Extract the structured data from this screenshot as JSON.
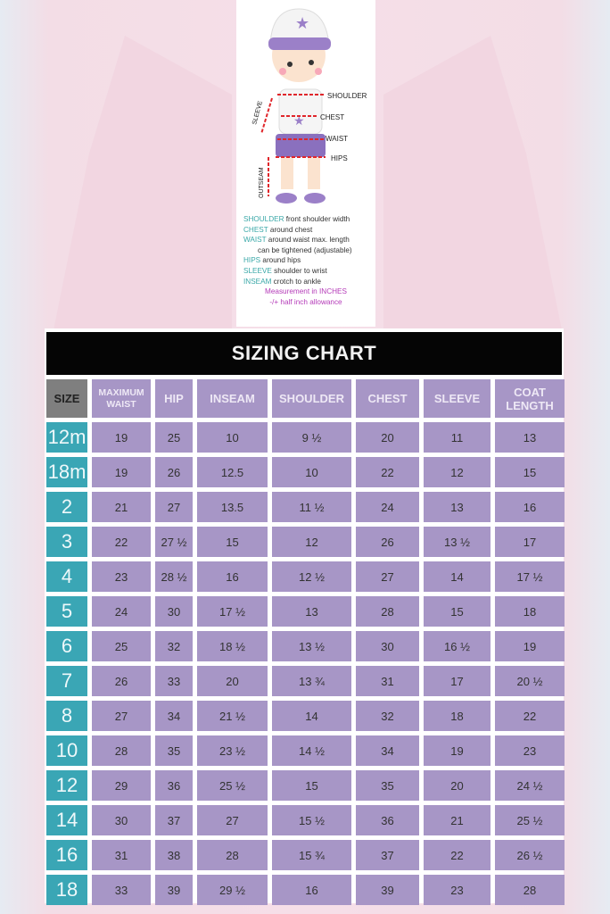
{
  "figure": {
    "labels": {
      "shoulder": "SHOULDER",
      "chest": "CHEST",
      "waist": "WAIST",
      "hips": "HIPS",
      "sleeve": "SLEEVE",
      "outseam": "OUTSEAM"
    },
    "legend": [
      {
        "key": "SHOULDER",
        "text": " front shoulder width"
      },
      {
        "key": "CHEST",
        "text": " around chest"
      },
      {
        "key": "WAIST",
        "text": " around waist max. length"
      },
      {
        "key": "",
        "text": "can be tightened (adjustable)"
      },
      {
        "key": "HIPS",
        "text": " around hips"
      },
      {
        "key": "SLEEVE",
        "text": " shoulder to wrist"
      },
      {
        "key": "INSEAM",
        "text": " crotch to ankle"
      }
    ],
    "notes": [
      "Measurement in INCHES",
      "-/+ half inch allowance"
    ]
  },
  "chart_data": {
    "type": "table",
    "title": "SIZING CHART",
    "columns": [
      "SIZE",
      "MAXIMUM WAIST",
      "HIP",
      "INSEAM",
      "SHOULDER",
      "CHEST",
      "SLEEVE",
      "COAT LENGTH"
    ],
    "rows": [
      [
        "12m",
        "19",
        "25",
        "10",
        "9 ½",
        "20",
        "11",
        "13"
      ],
      [
        "18m",
        "19",
        "26",
        "12.5",
        "10",
        "22",
        "12",
        "15"
      ],
      [
        "2",
        "21",
        "27",
        "13.5",
        "11 ½",
        "24",
        "13",
        "16"
      ],
      [
        "3",
        "22",
        "27 ½",
        "15",
        "12",
        "26",
        "13 ½",
        "17"
      ],
      [
        "4",
        "23",
        "28 ½",
        "16",
        "12 ½",
        "27",
        "14",
        "17 ½"
      ],
      [
        "5",
        "24",
        "30",
        "17 ½",
        "13",
        "28",
        "15",
        "18"
      ],
      [
        "6",
        "25",
        "32",
        "18 ½",
        "13 ½",
        "30",
        "16 ½",
        "19"
      ],
      [
        "7",
        "26",
        "33",
        "20",
        "13 ¾",
        "31",
        "17",
        "20 ½"
      ],
      [
        "8",
        "27",
        "34",
        "21 ½",
        "14",
        "32",
        "18",
        "22"
      ],
      [
        "10",
        "28",
        "35",
        "23 ½",
        "14 ½",
        "34",
        "19",
        "23"
      ],
      [
        "12",
        "29",
        "36",
        "25 ½",
        "15",
        "35",
        "20",
        "24 ½"
      ],
      [
        "14",
        "30",
        "37",
        "27",
        "15 ½",
        "36",
        "21",
        "25 ½"
      ],
      [
        "16",
        "31",
        "38",
        "28",
        "15 ¾",
        "37",
        "22",
        "26 ½"
      ],
      [
        "18",
        "33",
        "39",
        "29 ½",
        "16",
        "39",
        "23",
        "28"
      ]
    ]
  },
  "colors": {
    "header_bg": "#a796c6",
    "size_bg": "#3aa6b5",
    "title_bg": "#050505",
    "legend_key": "#3aa8a8",
    "note": "#b43ab8"
  }
}
